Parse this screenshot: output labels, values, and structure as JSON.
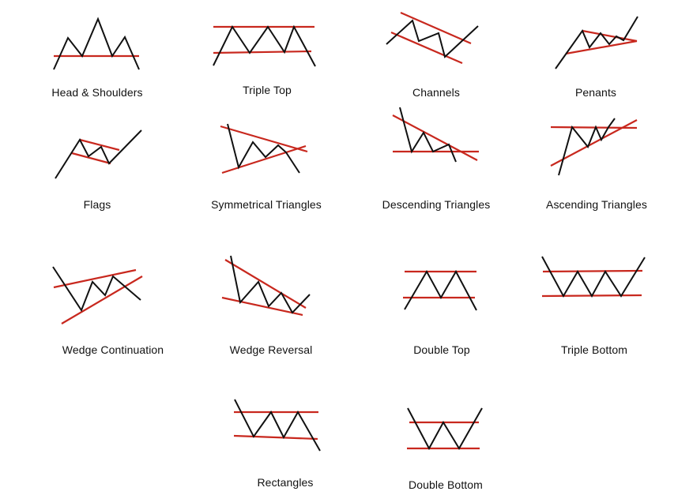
{
  "colors": {
    "price_line": "#111111",
    "trend_line": "#c8281e",
    "background": "#ffffff"
  },
  "patterns": [
    {
      "id": "head-and-shoulders",
      "label": "Head & Shoulders"
    },
    {
      "id": "triple-top",
      "label": "Triple Top"
    },
    {
      "id": "channels",
      "label": "Channels"
    },
    {
      "id": "penants",
      "label": "Penants"
    },
    {
      "id": "flags",
      "label": "Flags"
    },
    {
      "id": "symmetrical-triangles",
      "label": "Symmetrical Triangles"
    },
    {
      "id": "descending-triangles",
      "label": "Descending Triangles"
    },
    {
      "id": "ascending-triangles",
      "label": "Ascending Triangles"
    },
    {
      "id": "wedge-continuation",
      "label": "Wedge Continuation"
    },
    {
      "id": "wedge-reversal",
      "label": "Wedge Reversal"
    },
    {
      "id": "double-top",
      "label": "Double Top"
    },
    {
      "id": "triple-bottom",
      "label": "Triple Bottom"
    },
    {
      "id": "rectangles",
      "label": "Rectangles"
    },
    {
      "id": "double-bottom",
      "label": "Double Bottom"
    }
  ]
}
